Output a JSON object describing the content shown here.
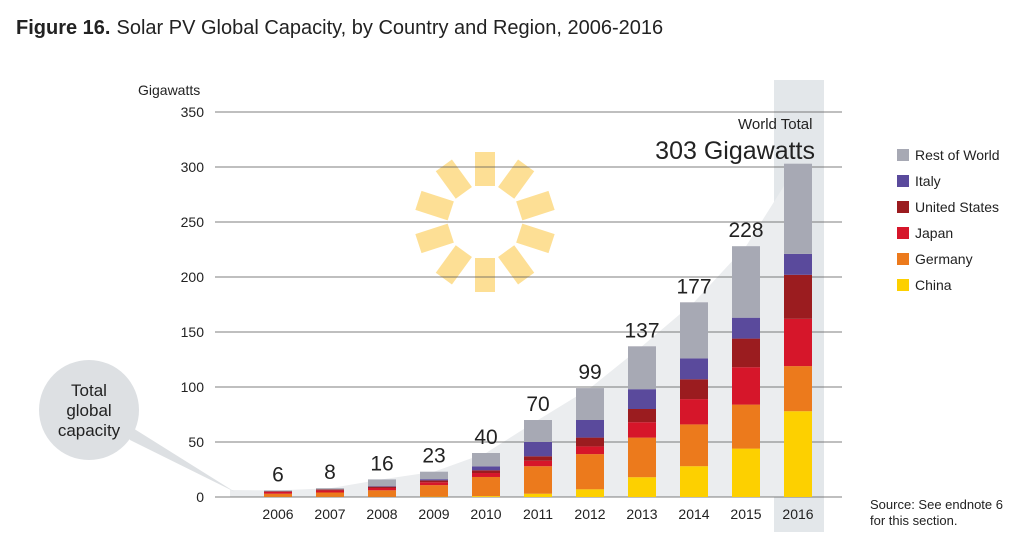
{
  "chart_data": {
    "type": "stacked_bar",
    "title_prefix": "Figure 16.",
    "title": "Solar PV Global Capacity, by Country and Region, 2006-2016",
    "y_label": "Gigawatts",
    "categories": [
      "2006",
      "2007",
      "2008",
      "2009",
      "2010",
      "2011",
      "2012",
      "2013",
      "2014",
      "2015",
      "2016"
    ],
    "series": [
      {
        "name": "China",
        "color": "#fdd000",
        "values": [
          0.1,
          0.1,
          0.1,
          0.3,
          0.8,
          3,
          7,
          18,
          28,
          44,
          78
        ]
      },
      {
        "name": "Germany",
        "color": "#ec7a1c",
        "values": [
          2.9,
          4,
          6,
          10.5,
          17.4,
          25,
          32,
          36,
          38,
          40,
          41
        ]
      },
      {
        "name": "Japan",
        "color": "#d6162a",
        "values": [
          1.7,
          1.9,
          2.1,
          2.6,
          3.6,
          5,
          7,
          14,
          23,
          34,
          43
        ]
      },
      {
        "name": "United States",
        "color": "#9b1c1f",
        "values": [
          0.6,
          0.8,
          1.2,
          1.7,
          2.5,
          4,
          8,
          12,
          18,
          26,
          40
        ]
      },
      {
        "name": "Italy",
        "color": "#5a4a9c",
        "values": [
          0.1,
          0.1,
          0.5,
          1.1,
          3.5,
          13,
          16,
          18,
          19,
          19,
          19
        ]
      },
      {
        "name": "Rest of World",
        "color": "#a7a9b4",
        "values": [
          0.6,
          1.1,
          6.1,
          6.8,
          12.2,
          20,
          29,
          39,
          51,
          65,
          82
        ]
      }
    ],
    "totals": [
      6,
      8,
      16,
      23,
      40,
      70,
      99,
      137,
      177,
      228,
      303
    ],
    "annotation_top": "World Total",
    "annotation_total": "303 Gigawatts",
    "callout": [
      "Total",
      "global",
      "capacity"
    ],
    "source": [
      "Source: See endnote 6",
      "for this section."
    ],
    "ylim": [
      0,
      350
    ],
    "yticks": [
      0,
      50,
      100,
      150,
      200,
      250,
      300,
      350
    ],
    "grid": true
  }
}
